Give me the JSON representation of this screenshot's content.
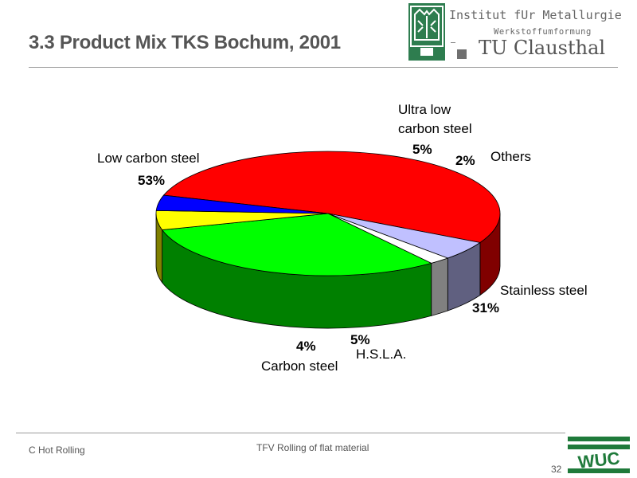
{
  "header": {
    "title": "3.3   Product Mix TKS Bochum, 2001",
    "institute_name": "Institut fUr Metallurgie",
    "institute_sub": "Werkstoffumformung",
    "university": "TU Clausthal",
    "logo_icon": "university-crest-icon",
    "accent_color": "#2e7d4f"
  },
  "chart_data": {
    "type": "pie",
    "title": "",
    "style": "3d",
    "slices": [
      {
        "name": "Low carbon steel",
        "label_lines": [
          "Low carbon steel"
        ],
        "value": 53,
        "pct_label": "53%",
        "color": "#ff0000",
        "side_color": "#800000"
      },
      {
        "name": "Ultra low carbon steel",
        "label_lines": [
          "Ultra low",
          "carbon steel"
        ],
        "value": 5,
        "pct_label": "5%",
        "color": "#c0c0ff",
        "side_color": "#606080"
      },
      {
        "name": "Others",
        "label_lines": [
          "Others"
        ],
        "value": 2,
        "pct_label": "2%",
        "color": "#ffffff",
        "side_color": "#808080"
      },
      {
        "name": "Stainless steel",
        "label_lines": [
          "Stainless steel"
        ],
        "value": 31,
        "pct_label": "31%",
        "color": "#00ff00",
        "side_color": "#008000"
      },
      {
        "name": "H.S.L.A.",
        "label_lines": [
          "H.S.L.A."
        ],
        "value": 5,
        "pct_label": "5%",
        "color": "#ffff00",
        "side_color": "#808000"
      },
      {
        "name": "Carbon steel",
        "label_lines": [
          "Carbon steel"
        ],
        "value": 4,
        "pct_label": "4%",
        "color": "#0000ff",
        "side_color": "#000080"
      }
    ]
  },
  "footer": {
    "left": "C Hot Rolling",
    "center": "TFV Rolling of flat material",
    "page": "32",
    "logo_text": "WUC",
    "logo_color": "#1f7a3a"
  }
}
